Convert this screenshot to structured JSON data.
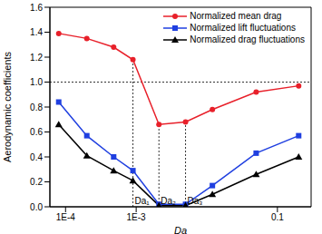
{
  "chart_data": {
    "type": "line",
    "x_label": "Da",
    "y_label": "Aerodynamic coefficients",
    "log": "x",
    "legend": "upper right",
    "xlim": [
      6e-05,
      0.3
    ],
    "xticks": [
      {
        "value": 0.0001,
        "label": "1E-4"
      },
      {
        "value": 0.001,
        "label": "1E-3"
      },
      0.1
    ],
    "ylim": [
      0,
      1.6
    ],
    "yticks": [
      {
        "value": 0,
        "label": "0.0"
      },
      0.2,
      0.4,
      0.6,
      0.8,
      {
        "value": 1,
        "label": "1.0"
      },
      1.2,
      1.4,
      1.6
    ],
    "x": [
      8e-05,
      0.0002,
      0.00048,
      0.0009,
      0.0021,
      0.005,
      0.012,
      0.05,
      0.2
    ],
    "series": [
      {
        "name": "Normalized mean drag",
        "color": "#e8202a",
        "marker": "circle",
        "values": [
          1.39,
          1.35,
          1.28,
          1.18,
          0.66,
          0.68,
          0.78,
          0.92,
          0.97
        ]
      },
      {
        "name": "Normalized lift fluctuations",
        "color": "#1f3fe0",
        "marker": "square",
        "values": [
          0.84,
          0.57,
          0.4,
          0.29,
          0.02,
          0.02,
          0.17,
          0.43,
          0.57
        ]
      },
      {
        "name": "Normalized drag fluctuations",
        "color": "#000000",
        "marker": "triangle",
        "values": [
          0.66,
          0.41,
          0.29,
          0.21,
          0.01,
          0.01,
          0.1,
          0.26,
          0.4
        ]
      }
    ],
    "hline": 1,
    "annotations": [
      {
        "text": "Da₁",
        "x": 0.0009,
        "y": 1.18
      },
      {
        "text": "Da₂",
        "x": 0.0021,
        "y": 0.66
      },
      {
        "text": "Da₃",
        "x": 0.005,
        "y": 0.68
      }
    ]
  }
}
